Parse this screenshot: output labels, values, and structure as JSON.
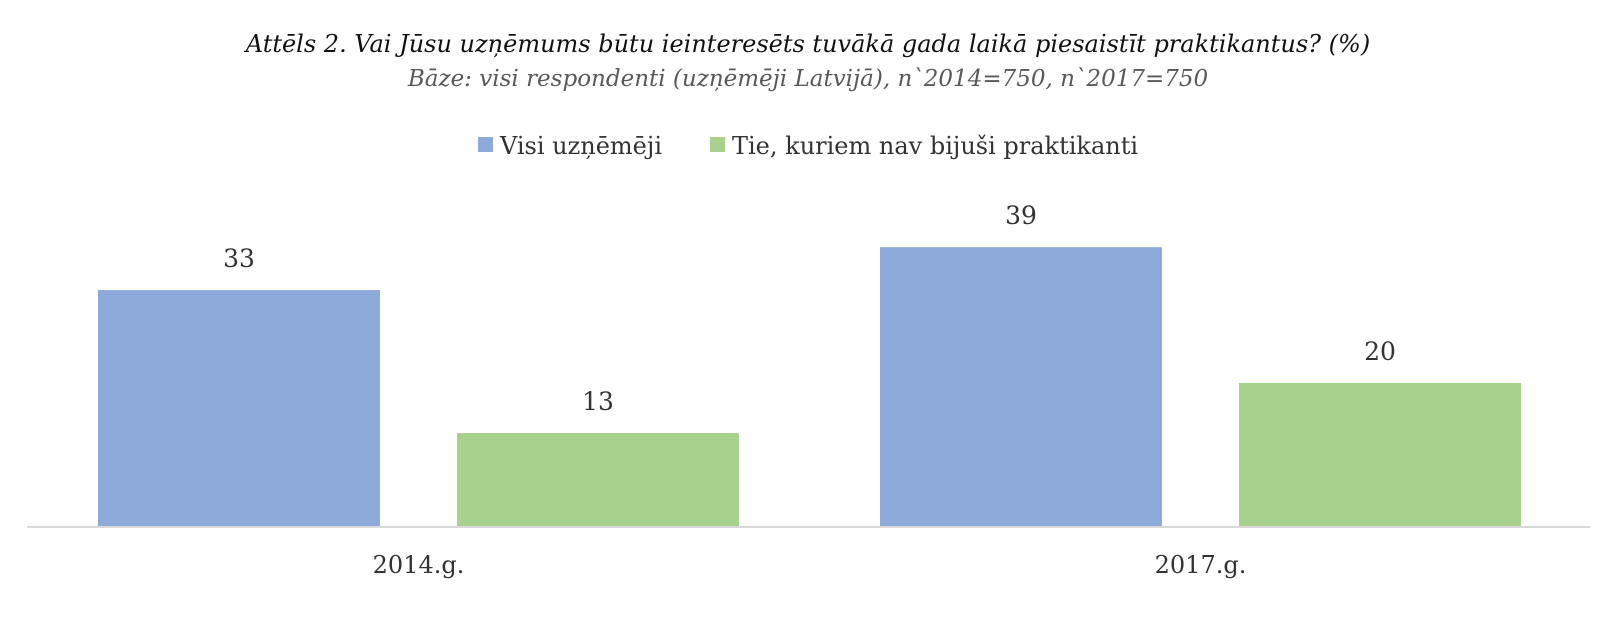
{
  "chart_data": {
    "type": "bar",
    "title": "Attēls 2. Vai Jūsu uzņēmums būtu ieinteresēts tuvākā gada laikā piesaistīt praktikantus? (%)",
    "subtitle": "Bāze: visi respondenti (uzņēmēji Latvijā), n`2014=750, n`2017=750",
    "categories": [
      "2014.g.",
      "2017.g."
    ],
    "series": [
      {
        "name": "Visi uzņēmēji",
        "values": [
          33,
          39
        ],
        "color": "#8eaadb"
      },
      {
        "name": "Tie, kuriem nav bijuši praktikanti",
        "values": [
          13,
          20
        ],
        "color": "#a9d18e"
      }
    ],
    "ylim": [
      0,
      45
    ],
    "grid": false,
    "legend_position": "top-center",
    "axis_color": "#d9d9d9"
  }
}
